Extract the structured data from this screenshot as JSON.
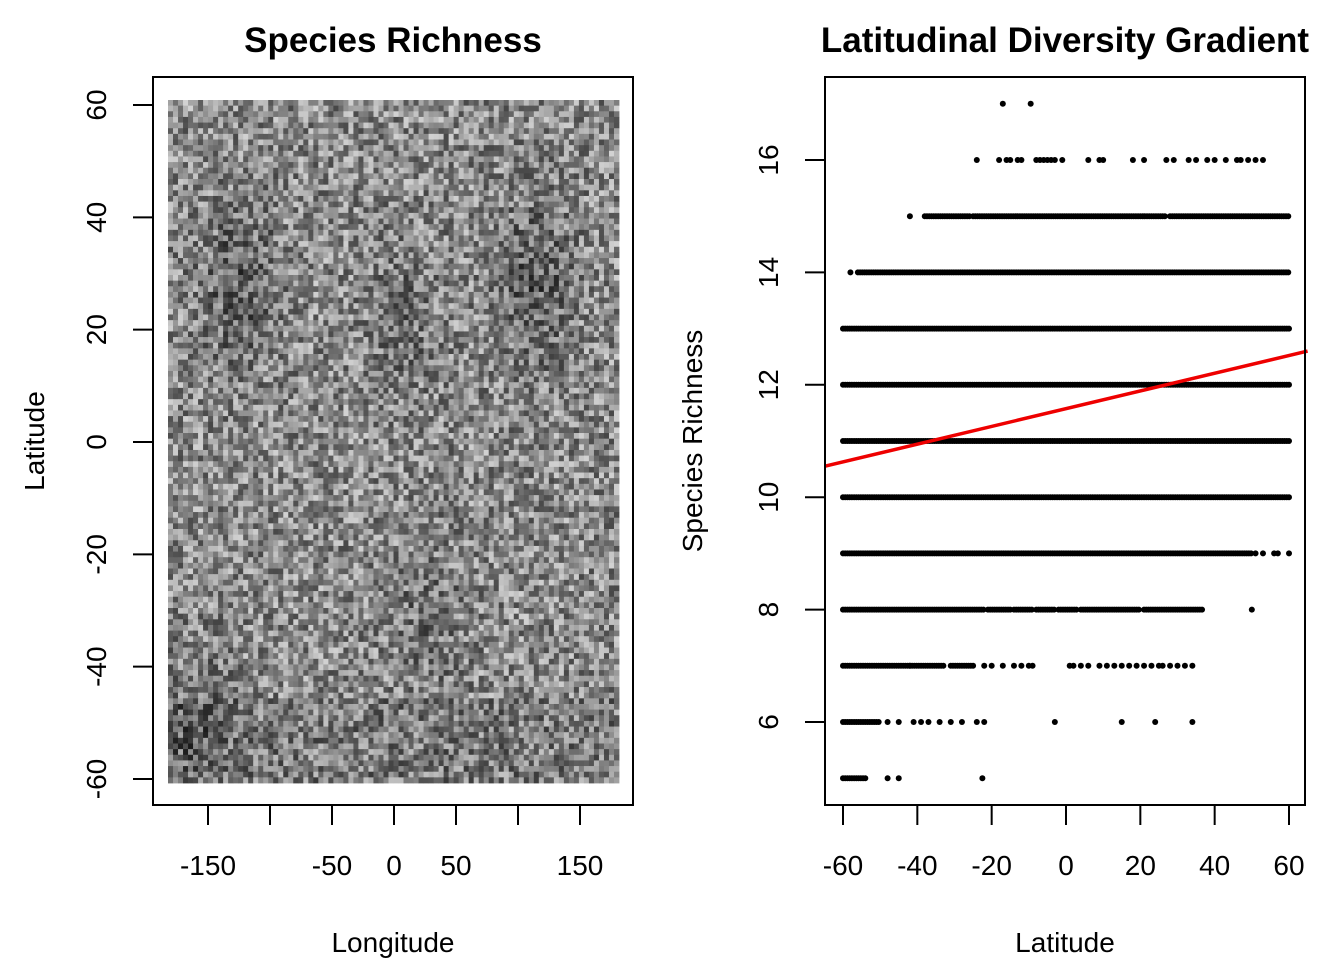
{
  "chart_data": [
    {
      "type": "heatmap",
      "title": "Species Richness",
      "xlabel": "Longitude",
      "ylabel": "Latitude",
      "xlim": [
        -180,
        180
      ],
      "ylim": [
        -60,
        60
      ],
      "x_ticks": [
        -200,
        -150,
        -100,
        -50,
        0,
        50,
        100,
        150,
        200
      ],
      "x_tick_labels": [
        "",
        "-150",
        "",
        "-50",
        "0",
        "50",
        "",
        "150",
        ""
      ],
      "y_ticks": [
        -60,
        -40,
        -20,
        0,
        20,
        40,
        60
      ],
      "y_tick_labels": [
        "-60",
        "-40",
        "-20",
        "0",
        "20",
        "40",
        "60"
      ],
      "colormap": "grayscale",
      "value_range": [
        5,
        17
      ],
      "grid": false,
      "legend": "none"
    },
    {
      "type": "scatter",
      "title": "Latitudinal Diversity Gradient",
      "xlabel": "Latitude",
      "ylabel": "Species Richness",
      "xlim": [
        -65,
        65
      ],
      "ylim": [
        4.5,
        17.5
      ],
      "x_ticks": [
        -60,
        -40,
        -20,
        0,
        20,
        40,
        60
      ],
      "x_tick_labels": [
        "-60",
        "-40",
        "-20",
        "0",
        "20",
        "40",
        "60"
      ],
      "y_ticks": [
        6,
        8,
        10,
        12,
        14,
        16
      ],
      "y_tick_labels": [
        "6",
        "8",
        "10",
        "12",
        "14",
        "16"
      ],
      "grid": false,
      "legend": "none",
      "point_color": "#000000",
      "series": [
        {
          "richness": 5,
          "latitude_ranges": [
            [
              -60,
              -54
            ]
          ],
          "latitudes": [
            -48,
            -45,
            -22.5
          ]
        },
        {
          "richness": 6,
          "latitude_ranges": [
            [
              -60,
              -50
            ]
          ],
          "latitudes": [
            -48,
            -45,
            -41,
            -39,
            -37,
            -34,
            -31,
            -28,
            -24,
            -22,
            -3,
            15,
            24,
            34
          ]
        },
        {
          "richness": 7,
          "latitude_ranges": [
            [
              -60,
              -42
            ],
            [
              -42,
              -33
            ],
            [
              -31,
              -25
            ]
          ],
          "latitudes": [
            -22,
            -20,
            -17,
            -14,
            -12,
            -10,
            -9,
            1,
            2,
            4,
            6,
            9,
            11,
            13,
            15,
            17,
            19,
            21,
            23,
            25,
            26,
            28,
            30,
            32,
            34
          ]
        },
        {
          "richness": 8,
          "latitude_ranges": [
            [
              -60,
              -22
            ],
            [
              -21,
              -15
            ],
            [
              -14,
              -9
            ],
            [
              -8,
              -3
            ],
            [
              -2,
              3
            ],
            [
              4,
              20
            ],
            [
              21,
              37
            ]
          ],
          "latitudes": [
            50
          ]
        },
        {
          "richness": 9,
          "latitude_ranges": [
            [
              -60,
              50
            ]
          ],
          "latitudes": [
            51,
            53,
            56,
            57,
            60
          ]
        },
        {
          "richness": 10,
          "latitude_ranges": [
            [
              -60,
              60
            ]
          ],
          "latitudes": []
        },
        {
          "richness": 11,
          "latitude_ranges": [
            [
              -60,
              60
            ]
          ],
          "latitudes": []
        },
        {
          "richness": 12,
          "latitude_ranges": [
            [
              -60,
              60
            ]
          ],
          "latitudes": []
        },
        {
          "richness": 13,
          "latitude_ranges": [
            [
              -60,
              60
            ]
          ],
          "latitudes": []
        },
        {
          "richness": 14,
          "latitude_ranges": [
            [
              -56,
              60
            ]
          ],
          "latitudes": [
            -58
          ]
        },
        {
          "richness": 15,
          "latitude_ranges": [
            [
              -38,
              -26
            ],
            [
              -25,
              27
            ],
            [
              28,
              60
            ]
          ],
          "latitudes": [
            -42
          ]
        },
        {
          "richness": 16,
          "latitude_ranges": [],
          "latitudes": [
            -24,
            -18,
            -16,
            -15,
            -13,
            -12,
            -8,
            -7,
            -6,
            -5,
            -4,
            -3,
            -1,
            6,
            9,
            10,
            18,
            21,
            27,
            29,
            33,
            35,
            38,
            40,
            43,
            46,
            47,
            49,
            51,
            53
          ]
        },
        {
          "richness": 17,
          "latitude_ranges": [],
          "latitudes": [
            -17,
            -9.5
          ]
        }
      ],
      "trend_line": {
        "color": "#ee0000",
        "x": [
          -65,
          65
        ],
        "y": [
          10.55,
          12.6
        ]
      }
    }
  ]
}
